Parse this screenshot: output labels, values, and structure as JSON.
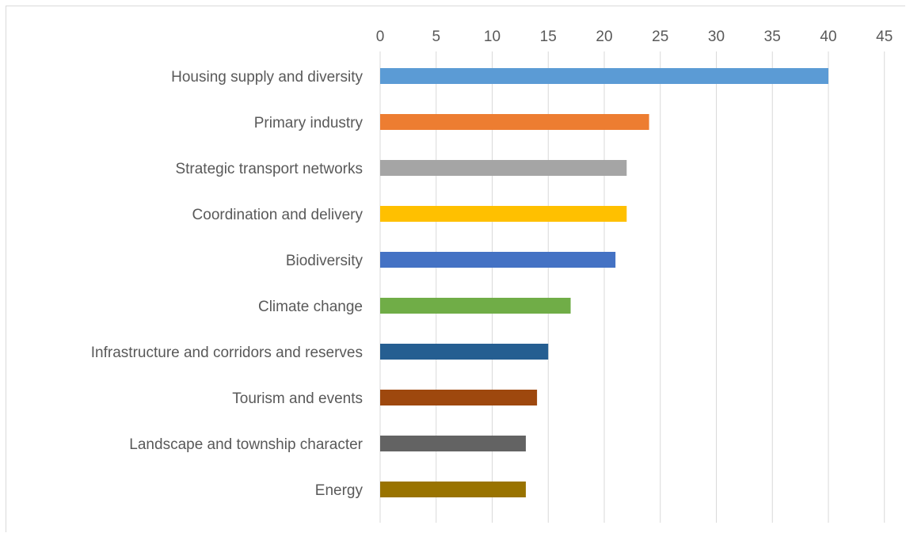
{
  "chart_data": {
    "type": "bar",
    "orientation": "horizontal",
    "categories": [
      "Housing supply and diversity",
      "Primary industry",
      "Strategic transport networks",
      "Coordination and delivery",
      "Biodiversity",
      "Climate change",
      "Infrastructure and corridors and reserves",
      "Tourism and events",
      "Landscape and township character",
      "Energy"
    ],
    "values": [
      40,
      24,
      22,
      22,
      21,
      17,
      15,
      14,
      13,
      13
    ],
    "colors": [
      "#5b9bd5",
      "#ed7d31",
      "#a5a5a5",
      "#ffc000",
      "#4472c4",
      "#70ad47",
      "#255e91",
      "#9e480e",
      "#636363",
      "#997300"
    ],
    "xlim": [
      0,
      45
    ],
    "xticks": [
      0,
      5,
      10,
      15,
      20,
      25,
      30,
      35,
      40,
      45
    ],
    "x_axis_position": "top",
    "grid": true,
    "legend": "none"
  }
}
